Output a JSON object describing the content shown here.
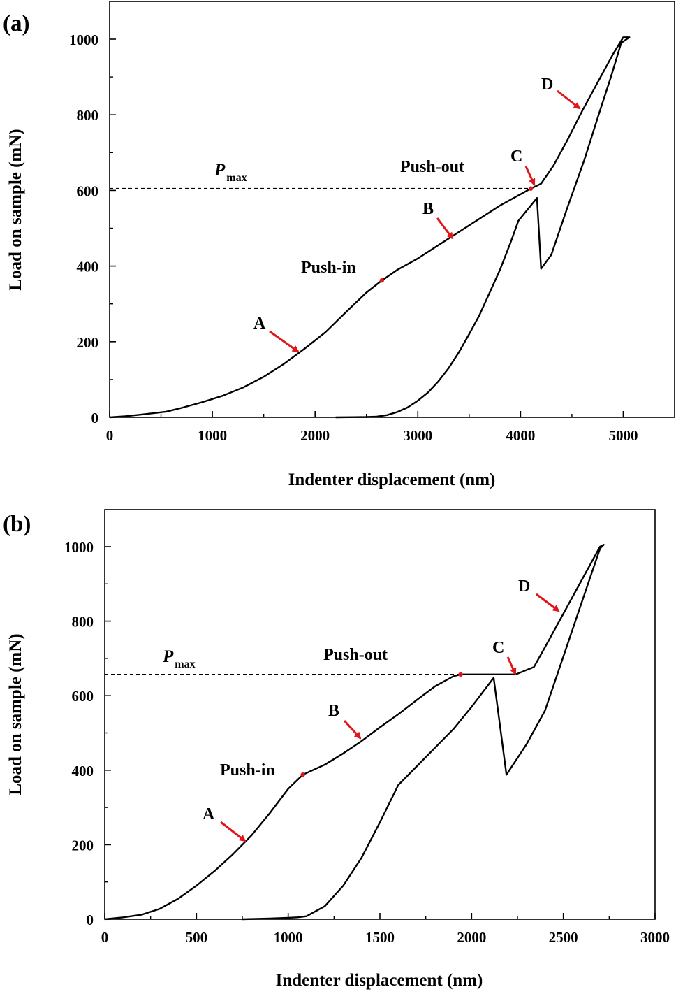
{
  "colors": {
    "curve": "#000000",
    "arrow": "#e0161b",
    "background": "#ffffff"
  },
  "chart_data": [
    {
      "type": "line",
      "panel_label": "(a)",
      "xlabel": "Indenter displacement (nm)",
      "ylabel": "Load on sample (mN)",
      "xlim": [
        0,
        5500
      ],
      "ylim": [
        0,
        1100
      ],
      "xticks": [
        0,
        1000,
        2000,
        3000,
        4000,
        5000
      ],
      "yticks": [
        0,
        200,
        400,
        600,
        800,
        1000
      ],
      "pmax": {
        "label": "P",
        "sub": "max",
        "value": 605,
        "x_end": 4100
      },
      "series": [
        {
          "name": "load-unload curve",
          "points": [
            [
              0,
              0
            ],
            [
              150,
              3
            ],
            [
              300,
              7
            ],
            [
              550,
              15
            ],
            [
              700,
              25
            ],
            [
              900,
              40
            ],
            [
              1100,
              57
            ],
            [
              1300,
              79
            ],
            [
              1500,
              107
            ],
            [
              1700,
              142
            ],
            [
              1900,
              182
            ],
            [
              2100,
              225
            ],
            [
              2300,
              278
            ],
            [
              2500,
              330
            ],
            [
              2650,
              362
            ],
            [
              2800,
              390
            ],
            [
              3000,
              420
            ],
            [
              3200,
              455
            ],
            [
              3400,
              490
            ],
            [
              3600,
              525
            ],
            [
              3800,
              560
            ],
            [
              4000,
              590
            ],
            [
              4100,
              605
            ],
            [
              4200,
              618
            ],
            [
              4320,
              665
            ],
            [
              4450,
              730
            ],
            [
              4600,
              810
            ],
            [
              4700,
              860
            ],
            [
              4800,
              910
            ],
            [
              4900,
              960
            ],
            [
              5000,
              1005
            ],
            [
              5060,
              1005
            ],
            [
              4980,
              990
            ],
            [
              4880,
              900
            ],
            [
              4760,
              800
            ],
            [
              4620,
              680
            ],
            [
              4450,
              550
            ],
            [
              4300,
              430
            ],
            [
              4200,
              393
            ],
            [
              4160,
              580
            ],
            [
              4100,
              560
            ],
            [
              4040,
              540
            ],
            [
              3980,
              520
            ],
            [
              3900,
              460
            ],
            [
              3800,
              390
            ],
            [
              3700,
              330
            ],
            [
              3600,
              270
            ],
            [
              3500,
              220
            ],
            [
              3400,
              172
            ],
            [
              3300,
              130
            ],
            [
              3200,
              95
            ],
            [
              3100,
              66
            ],
            [
              3000,
              44
            ],
            [
              2900,
              26
            ],
            [
              2800,
              14
            ],
            [
              2700,
              6
            ],
            [
              2600,
              2
            ],
            [
              2500,
              1
            ],
            [
              2200,
              0
            ]
          ]
        }
      ],
      "markers": [
        {
          "name": "Push-in",
          "x": 2650,
          "y": 362
        },
        {
          "name": "Push-out",
          "x": 4100,
          "y": 605
        }
      ],
      "annotations": [
        {
          "text": "Push-in"
        },
        {
          "text": "Push-out"
        },
        {
          "text": "A"
        },
        {
          "text": "B"
        },
        {
          "text": "C"
        },
        {
          "text": "D"
        }
      ]
    },
    {
      "type": "line",
      "panel_label": "(b)",
      "xlabel": "Indenter displacement (nm)",
      "ylabel": "Load on sample (mN)",
      "xlim": [
        0,
        3000
      ],
      "ylim": [
        0,
        1100
      ],
      "xticks": [
        0,
        500,
        1000,
        1500,
        2000,
        2500,
        3000
      ],
      "yticks": [
        0,
        200,
        400,
        600,
        800,
        1000
      ],
      "pmax": {
        "label": "P",
        "sub": "max",
        "value": 657,
        "x_end": 1940
      },
      "series": [
        {
          "name": "load-unload curve",
          "points": [
            [
              0,
              0
            ],
            [
              100,
              5
            ],
            [
              200,
              12
            ],
            [
              300,
              28
            ],
            [
              400,
              55
            ],
            [
              500,
              90
            ],
            [
              600,
              130
            ],
            [
              700,
              175
            ],
            [
              800,
              225
            ],
            [
              900,
              285
            ],
            [
              1000,
              350
            ],
            [
              1080,
              388
            ],
            [
              1200,
              415
            ],
            [
              1300,
              445
            ],
            [
              1400,
              478
            ],
            [
              1500,
              515
            ],
            [
              1600,
              550
            ],
            [
              1700,
              588
            ],
            [
              1800,
              625
            ],
            [
              1900,
              652
            ],
            [
              1940,
              657
            ],
            [
              2000,
              657
            ],
            [
              2100,
              657
            ],
            [
              2240,
              657
            ],
            [
              2340,
              677
            ],
            [
              2400,
              730
            ],
            [
              2500,
              820
            ],
            [
              2600,
              910
            ],
            [
              2700,
              1000
            ],
            [
              2720,
              1005
            ],
            [
              2700,
              995
            ],
            [
              2600,
              850
            ],
            [
              2500,
              705
            ],
            [
              2400,
              560
            ],
            [
              2300,
              470
            ],
            [
              2190,
              388
            ],
            [
              2120,
              648
            ],
            [
              2000,
              570
            ],
            [
              1900,
              510
            ],
            [
              1800,
              460
            ],
            [
              1700,
              410
            ],
            [
              1600,
              360
            ],
            [
              1500,
              260
            ],
            [
              1400,
              165
            ],
            [
              1300,
              90
            ],
            [
              1200,
              35
            ],
            [
              1100,
              8
            ],
            [
              1050,
              5
            ],
            [
              1000,
              4
            ],
            [
              900,
              2
            ],
            [
              750,
              0
            ]
          ]
        }
      ],
      "markers": [
        {
          "name": "Push-in",
          "x": 1080,
          "y": 388
        },
        {
          "name": "Push-out",
          "x": 1940,
          "y": 657
        }
      ],
      "annotations": [
        {
          "text": "Push-in"
        },
        {
          "text": "Push-out"
        },
        {
          "text": "A"
        },
        {
          "text": "B"
        },
        {
          "text": "C"
        },
        {
          "text": "D"
        }
      ]
    }
  ]
}
